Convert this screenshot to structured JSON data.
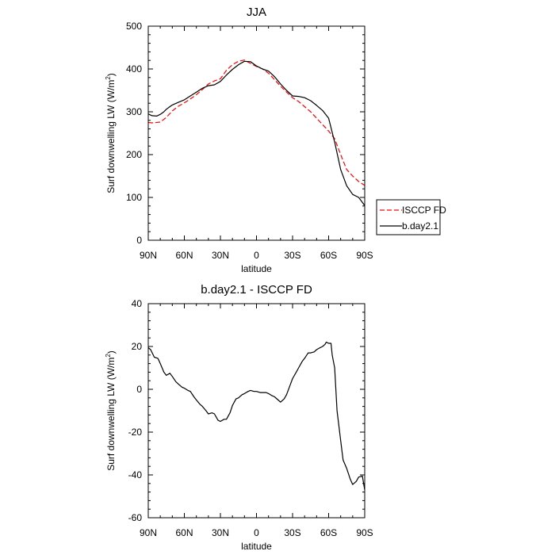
{
  "chart_data": [
    {
      "type": "line",
      "title": "JJA",
      "xlabel": "latitude",
      "ylabel_main": "Surf downwelling LW (W/m",
      "ylabel_sup": "2",
      "ylabel_end": ")",
      "xlim": [
        90,
        -90
      ],
      "ylim": [
        0,
        500
      ],
      "xticks": [
        90,
        60,
        30,
        0,
        -30,
        -60,
        -90
      ],
      "xtick_labels": [
        "90N",
        "60N",
        "30N",
        "0",
        "30S",
        "60S",
        "90S"
      ],
      "yticks": [
        0,
        100,
        200,
        300,
        400,
        500
      ],
      "ytick_labels": [
        "0",
        "100",
        "200",
        "300",
        "400",
        "500"
      ],
      "legend": {
        "placement": "right",
        "entries": [
          {
            "label": "ISCCP FD",
            "series": "ISCCP FD"
          },
          {
            "label": "b.day2.1",
            "series": "b.day2.1"
          }
        ]
      },
      "series": [
        {
          "name": "ISCCP FD",
          "color": "#ff0000",
          "dash": "dashed",
          "x": [
            90,
            87,
            80,
            75,
            70,
            65,
            60,
            55,
            50,
            45,
            40,
            35,
            30,
            25,
            20,
            15,
            10,
            5,
            0,
            -5,
            -10,
            -15,
            -20,
            -25,
            -30,
            -35,
            -40,
            -45,
            -50,
            -55,
            -60,
            -65,
            -70,
            -75,
            -80,
            -85,
            -90
          ],
          "y": [
            275,
            274,
            276,
            287,
            302,
            313,
            321,
            330,
            340,
            352,
            365,
            372,
            377,
            397,
            410,
            418,
            421,
            413,
            406,
            400,
            390,
            375,
            360,
            346,
            333,
            324,
            312,
            300,
            285,
            270,
            255,
            237,
            200,
            165,
            150,
            137,
            128
          ]
        },
        {
          "name": "b.day2.1",
          "color": "#000000",
          "dash": "solid",
          "x": [
            90,
            87,
            83,
            80,
            77,
            75,
            72,
            70,
            65,
            60,
            55,
            50,
            45,
            40,
            35,
            30,
            25,
            20,
            15,
            10,
            5,
            0,
            -5,
            -10,
            -15,
            -20,
            -25,
            -30,
            -35,
            -40,
            -45,
            -50,
            -55,
            -60,
            -65,
            -70,
            -75,
            -80,
            -85,
            -90
          ],
          "y": [
            295,
            291,
            290,
            294,
            300,
            306,
            312,
            316,
            322,
            328,
            337,
            346,
            355,
            361,
            363,
            371,
            386,
            399,
            410,
            418,
            417,
            407,
            400,
            395,
            382,
            365,
            350,
            337,
            336,
            333,
            326,
            315,
            303,
            285,
            229,
            165,
            127,
            107,
            100,
            81
          ]
        }
      ]
    },
    {
      "type": "line",
      "title": "b.day2.1 - ISCCP FD",
      "xlabel": "latitude",
      "ylabel_main": "Surf downwelling LW (W/m",
      "ylabel_sup": "2",
      "ylabel_end": ")",
      "xlim": [
        90,
        -90
      ],
      "ylim": [
        -60,
        40
      ],
      "xticks": [
        90,
        60,
        30,
        0,
        -30,
        -60,
        -90
      ],
      "xtick_labels": [
        "90N",
        "60N",
        "30N",
        "0",
        "30S",
        "60S",
        "90S"
      ],
      "yticks": [
        -60,
        -40,
        -20,
        0,
        20,
        40
      ],
      "ytick_labels": [
        "-60",
        "-40",
        "-20",
        "0",
        "20",
        "40"
      ],
      "series": [
        {
          "name": "b.day2.1 - ISCCP FD",
          "color": "#000000",
          "dash": "solid",
          "x": [
            90,
            88,
            85,
            82,
            80,
            77,
            75,
            72,
            70,
            67,
            65,
            62,
            60,
            57,
            55,
            52,
            50,
            47,
            45,
            42,
            40,
            37,
            35,
            32,
            30,
            27,
            25,
            22,
            20,
            17,
            15,
            12,
            10,
            7,
            5,
            2,
            0,
            -3,
            -5,
            -8,
            -10,
            -13,
            -15,
            -18,
            -20,
            -23,
            -25,
            -28,
            -30,
            -33,
            -35,
            -38,
            -40,
            -43,
            -45,
            -48,
            -50,
            -53,
            -55,
            -57,
            -58,
            -60,
            -62,
            -63,
            -65,
            -67,
            -70,
            -72,
            -75,
            -78,
            -80,
            -83,
            -85,
            -88,
            -90
          ],
          "y": [
            19.5,
            18.5,
            15,
            14.5,
            12,
            8,
            6.5,
            7.5,
            6,
            3.5,
            2.5,
            1,
            0.5,
            -0.5,
            -1,
            -3.5,
            -5,
            -7,
            -8,
            -10,
            -11.5,
            -11,
            -11.5,
            -14.5,
            -15,
            -14,
            -14,
            -11,
            -7.5,
            -4.5,
            -4,
            -2.5,
            -2,
            -1,
            -0.5,
            -1,
            -1,
            -1.5,
            -1.5,
            -1.5,
            -2,
            -3,
            -3.5,
            -5,
            -6,
            -4.5,
            -2.5,
            2,
            5,
            8,
            10,
            13,
            14.5,
            17,
            17,
            17.5,
            18.5,
            19.5,
            20,
            21,
            22,
            21.5,
            21.5,
            16,
            10,
            -10,
            -24,
            -33,
            -37,
            -42,
            -44.5,
            -43,
            -41,
            -40.5,
            -47
          ]
        }
      ]
    }
  ]
}
